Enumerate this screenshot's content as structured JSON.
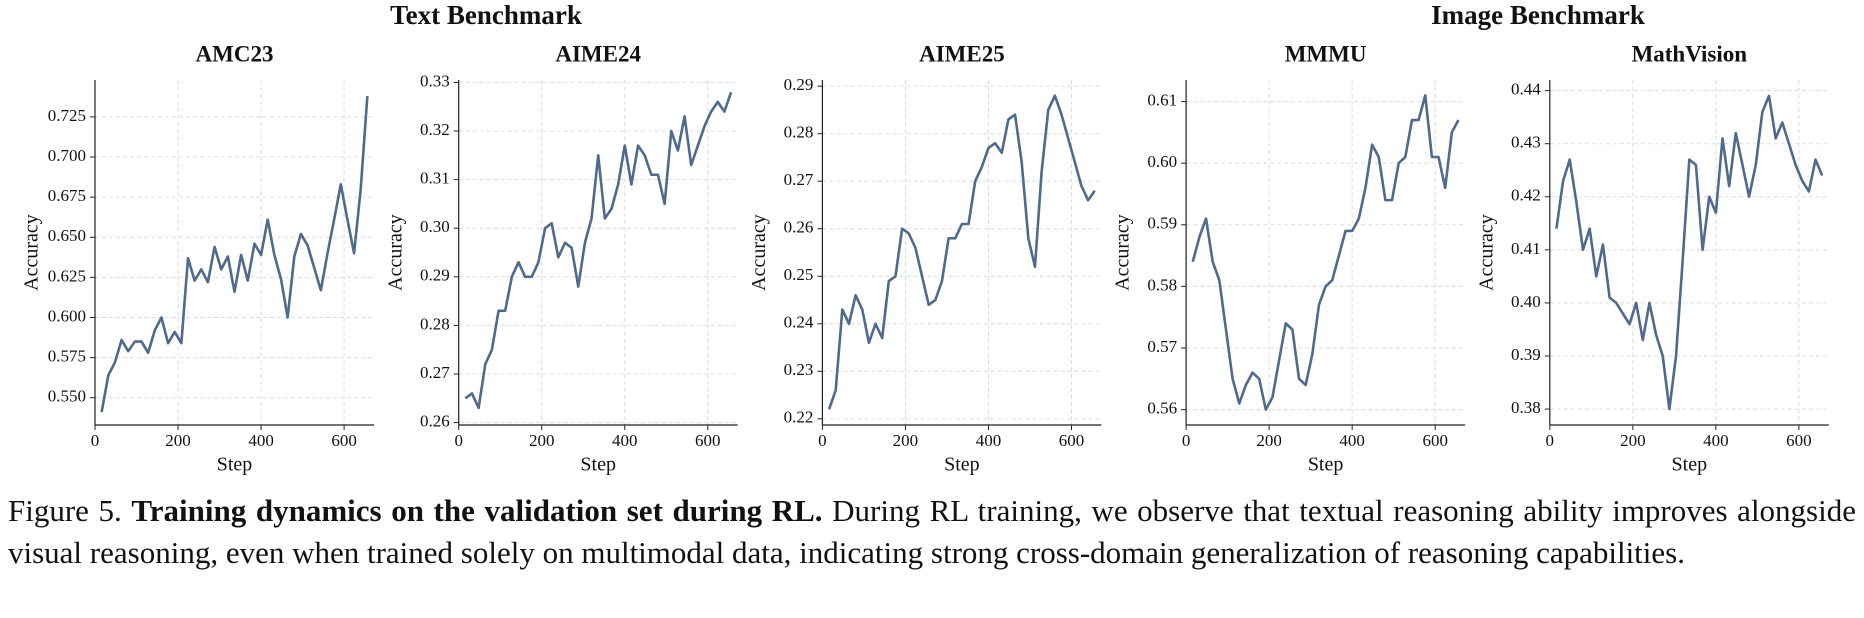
{
  "headings": [
    "Text Benchmark",
    "Image Benchmark"
  ],
  "caption": {
    "label": "Figure 5.",
    "title": "Training dynamics on the validation set during RL.",
    "text": "During RL training, we observe that textual reasoning ability improves alongside visual reasoning, even when trained solely on multimodal data, indicating strong cross-domain generalization of reasoning capabilities."
  },
  "chart_data": [
    {
      "type": "line",
      "title": "AMC23",
      "xlabel": "Step",
      "ylabel": "Accuracy",
      "color": "#4f6a8c",
      "grid": true,
      "x": [
        16,
        32,
        48,
        64,
        80,
        96,
        112,
        128,
        144,
        160,
        176,
        192,
        208,
        224,
        240,
        256,
        272,
        288,
        304,
        320,
        336,
        352,
        368,
        384,
        400,
        416,
        432,
        448,
        464,
        480,
        496,
        512,
        528,
        544,
        560,
        576,
        592,
        608,
        624,
        640,
        656
      ],
      "values": [
        0.541,
        0.564,
        0.572,
        0.586,
        0.579,
        0.585,
        0.585,
        0.578,
        0.592,
        0.6,
        0.584,
        0.591,
        0.584,
        0.637,
        0.623,
        0.63,
        0.622,
        0.644,
        0.63,
        0.638,
        0.616,
        0.639,
        0.623,
        0.646,
        0.639,
        0.661,
        0.639,
        0.624,
        0.6,
        0.638,
        0.652,
        0.645,
        0.631,
        0.617,
        0.64,
        0.661,
        0.683,
        0.661,
        0.64,
        0.68,
        0.738
      ],
      "xlim": [
        0,
        672
      ],
      "ylim": [
        0.533,
        0.748
      ],
      "xticks": [
        0,
        200,
        400,
        600
      ],
      "yticks": [
        {
          "value": 0.55,
          "label": "0.550"
        },
        0.575,
        {
          "value": 0.6,
          "label": "0.600"
        },
        0.625,
        {
          "value": 0.65,
          "label": "0.650"
        },
        0.675,
        {
          "value": 0.7,
          "label": "0.700"
        },
        0.725
      ]
    },
    {
      "type": "line",
      "title": "AIME24",
      "xlabel": "Step",
      "ylabel": "Accuracy",
      "color": "#4f6a8c",
      "grid": true,
      "x": [
        16,
        32,
        48,
        64,
        80,
        96,
        112,
        128,
        144,
        160,
        176,
        192,
        208,
        224,
        240,
        256,
        272,
        288,
        304,
        320,
        336,
        352,
        368,
        384,
        400,
        416,
        432,
        448,
        464,
        480,
        496,
        512,
        528,
        544,
        560,
        576,
        592,
        608,
        624,
        640,
        656
      ],
      "values": [
        0.265,
        0.266,
        0.263,
        0.272,
        0.275,
        0.283,
        0.283,
        0.29,
        0.293,
        0.29,
        0.29,
        0.293,
        0.3,
        0.301,
        0.294,
        0.297,
        0.296,
        0.288,
        0.297,
        0.302,
        0.315,
        0.302,
        0.304,
        0.309,
        0.317,
        0.309,
        0.317,
        0.315,
        0.311,
        0.311,
        0.305,
        0.32,
        0.316,
        0.323,
        0.313,
        0.317,
        0.321,
        0.324,
        0.326,
        0.324,
        0.328
      ],
      "xlim": [
        0,
        672
      ],
      "ylim": [
        0.2595,
        0.3305
      ],
      "xticks": [
        0,
        200,
        400,
        600
      ],
      "yticks": [
        0.26,
        0.27,
        0.28,
        0.29,
        {
          "value": 0.3,
          "label": "0.30"
        },
        0.31,
        0.32,
        0.33
      ]
    },
    {
      "type": "line",
      "title": "AIME25",
      "xlabel": "Step",
      "ylabel": "Accuracy",
      "color": "#4f6a8c",
      "grid": true,
      "x": [
        16,
        32,
        48,
        64,
        80,
        96,
        112,
        128,
        144,
        160,
        176,
        192,
        208,
        224,
        240,
        256,
        272,
        288,
        304,
        320,
        336,
        352,
        368,
        384,
        400,
        416,
        432,
        448,
        464,
        480,
        496,
        512,
        528,
        544,
        560,
        576,
        592,
        608,
        624,
        640,
        656
      ],
      "values": [
        0.222,
        0.226,
        0.243,
        0.24,
        0.246,
        0.243,
        0.236,
        0.24,
        0.237,
        0.249,
        0.25,
        0.26,
        0.259,
        0.256,
        0.25,
        0.244,
        0.245,
        0.249,
        0.258,
        0.258,
        0.261,
        0.261,
        0.27,
        0.273,
        0.277,
        0.278,
        0.276,
        0.283,
        0.284,
        0.274,
        0.258,
        0.252,
        0.272,
        0.285,
        0.288,
        0.284,
        0.279,
        0.274,
        0.269,
        0.266,
        0.268
      ],
      "xlim": [
        0,
        672
      ],
      "ylim": [
        0.2187,
        0.2913
      ],
      "xticks": [
        0,
        200,
        400,
        600
      ],
      "yticks": [
        0.22,
        0.23,
        0.24,
        0.25,
        0.26,
        0.27,
        0.28,
        0.29
      ]
    },
    {
      "type": "line",
      "title": "MMMU",
      "xlabel": "Step",
      "ylabel": "Accuracy",
      "color": "#4f6a8c",
      "grid": true,
      "x": [
        16,
        32,
        48,
        64,
        80,
        96,
        112,
        128,
        144,
        160,
        176,
        192,
        208,
        224,
        240,
        256,
        272,
        288,
        304,
        320,
        336,
        352,
        368,
        384,
        400,
        416,
        432,
        448,
        464,
        480,
        496,
        512,
        528,
        544,
        560,
        576,
        592,
        608,
        624,
        640,
        656
      ],
      "values": [
        0.584,
        0.588,
        0.591,
        0.584,
        0.581,
        0.573,
        0.565,
        0.561,
        0.564,
        0.566,
        0.565,
        0.56,
        0.562,
        0.568,
        0.574,
        0.573,
        0.565,
        0.564,
        0.569,
        0.577,
        0.58,
        0.581,
        0.585,
        0.589,
        0.589,
        0.591,
        0.596,
        0.603,
        0.601,
        0.594,
        0.594,
        0.6,
        0.601,
        0.607,
        0.607,
        0.611,
        0.601,
        0.601,
        0.596,
        0.605,
        0.607
      ],
      "xlim": [
        0,
        672
      ],
      "ylim": [
        0.5575,
        0.6135
      ],
      "xticks": [
        0,
        200,
        400,
        600
      ],
      "yticks": [
        0.56,
        0.57,
        0.58,
        0.59,
        {
          "value": 0.6,
          "label": "0.60"
        },
        0.61
      ]
    },
    {
      "type": "line",
      "title": "MathVision",
      "xlabel": "Step",
      "ylabel": "Accuracy",
      "color": "#4f6a8c",
      "grid": true,
      "x": [
        16,
        32,
        48,
        64,
        80,
        96,
        112,
        128,
        144,
        160,
        176,
        192,
        208,
        224,
        240,
        256,
        272,
        288,
        304,
        320,
        336,
        352,
        368,
        384,
        400,
        416,
        432,
        448,
        464,
        480,
        496,
        512,
        528,
        544,
        560,
        576,
        592,
        608,
        624,
        640,
        656
      ],
      "values": [
        0.414,
        0.423,
        0.427,
        0.419,
        0.41,
        0.414,
        0.405,
        0.411,
        0.401,
        0.4,
        0.398,
        0.396,
        0.4,
        0.393,
        0.4,
        0.394,
        0.39,
        0.38,
        0.39,
        0.408,
        0.427,
        0.426,
        0.41,
        0.42,
        0.417,
        0.431,
        0.422,
        0.432,
        0.426,
        0.42,
        0.426,
        0.436,
        0.439,
        0.431,
        0.434,
        0.43,
        0.426,
        0.423,
        0.421,
        0.427,
        0.424
      ],
      "xlim": [
        0,
        672
      ],
      "ylim": [
        0.377,
        0.442
      ],
      "xticks": [
        0,
        200,
        400,
        600
      ],
      "yticks": [
        0.38,
        0.39,
        {
          "value": 0.4,
          "label": "0.40"
        },
        0.41,
        0.42,
        0.43,
        0.44
      ]
    }
  ]
}
